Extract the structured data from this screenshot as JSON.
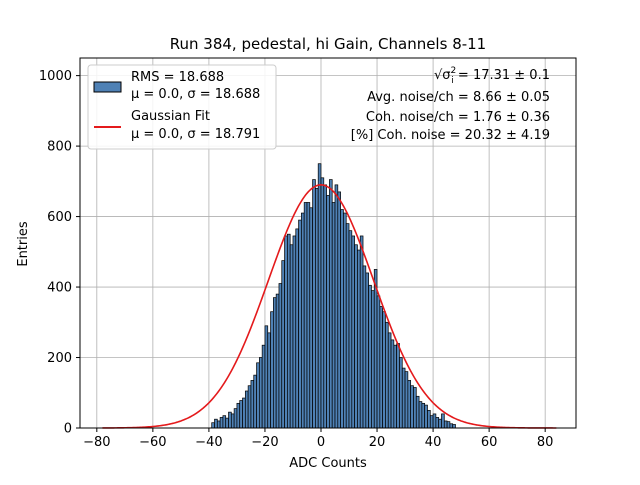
{
  "chart_data": {
    "type": "bar",
    "title": "Run 384, pedestal, hi Gain, Channels 8-11",
    "xlabel": "ADC Counts",
    "ylabel": "Entries",
    "xlim": [
      -86,
      91
    ],
    "ylim": [
      0,
      1050
    ],
    "xticks": [
      -80,
      -60,
      -40,
      -20,
      0,
      20,
      40,
      60,
      80
    ],
    "yticks": [
      0,
      200,
      400,
      600,
      800,
      1000
    ],
    "grid": true,
    "bin_width": 1,
    "histogram": {
      "name": "RMS",
      "legend_line1": "RMS = 18.688",
      "legend_line2": "μ = 0.0, σ = 18.688",
      "color": "#4f81b5",
      "edge_color": "#000000",
      "bins": [
        [
          -39,
          15
        ],
        [
          -38,
          25
        ],
        [
          -37,
          20
        ],
        [
          -36,
          30
        ],
        [
          -35,
          35
        ],
        [
          -34,
          28
        ],
        [
          -33,
          45
        ],
        [
          -32,
          40
        ],
        [
          -31,
          55
        ],
        [
          -30,
          70
        ],
        [
          -29,
          78
        ],
        [
          -28,
          85
        ],
        [
          -27,
          105
        ],
        [
          -26,
          120
        ],
        [
          -25,
          135
        ],
        [
          -24,
          150
        ],
        [
          -23,
          185
        ],
        [
          -22,
          200
        ],
        [
          -21,
          235
        ],
        [
          -20,
          290
        ],
        [
          -19,
          270
        ],
        [
          -18,
          330
        ],
        [
          -17,
          370
        ],
        [
          -16,
          380
        ],
        [
          -15,
          410
        ],
        [
          -14,
          475
        ],
        [
          -13,
          545
        ],
        [
          -12,
          550
        ],
        [
          -11,
          520
        ],
        [
          -10,
          545
        ],
        [
          -9,
          565
        ],
        [
          -8,
          590
        ],
        [
          -7,
          610
        ],
        [
          -6,
          640
        ],
        [
          -5,
          640
        ],
        [
          -4,
          625
        ],
        [
          -3,
          705
        ],
        [
          -2,
          680
        ],
        [
          -1,
          750
        ],
        [
          0,
          710
        ],
        [
          1,
          690
        ],
        [
          2,
          660
        ],
        [
          3,
          705
        ],
        [
          4,
          640
        ],
        [
          5,
          690
        ],
        [
          6,
          670
        ],
        [
          7,
          620
        ],
        [
          8,
          610
        ],
        [
          9,
          580
        ],
        [
          10,
          560
        ],
        [
          11,
          545
        ],
        [
          12,
          520
        ],
        [
          13,
          505
        ],
        [
          14,
          545
        ],
        [
          15,
          460
        ],
        [
          16,
          440
        ],
        [
          17,
          405
        ],
        [
          18,
          390
        ],
        [
          19,
          450
        ],
        [
          20,
          375
        ],
        [
          21,
          345
        ],
        [
          22,
          330
        ],
        [
          23,
          300
        ],
        [
          24,
          270
        ],
        [
          25,
          250
        ],
        [
          26,
          235
        ],
        [
          27,
          240
        ],
        [
          28,
          200
        ],
        [
          29,
          170
        ],
        [
          30,
          160
        ],
        [
          31,
          135
        ],
        [
          32,
          120
        ],
        [
          33,
          115
        ],
        [
          34,
          90
        ],
        [
          35,
          75
        ],
        [
          36,
          70
        ],
        [
          37,
          65
        ],
        [
          38,
          50
        ],
        [
          39,
          35
        ],
        [
          40,
          40
        ],
        [
          41,
          30
        ],
        [
          42,
          25
        ],
        [
          43,
          40
        ],
        [
          44,
          20
        ],
        [
          45,
          18
        ],
        [
          46,
          12
        ],
        [
          47,
          10
        ]
      ]
    },
    "fit": {
      "name": "Gaussian Fit",
      "legend_line1": "Gaussian Fit",
      "legend_line2": "μ = 0.0, σ = 18.791",
      "mu": 0.0,
      "sigma": 18.791,
      "amplitude": 690,
      "x_range": [
        -78,
        84
      ],
      "color": "#e41a1c"
    },
    "annotations": {
      "line1_prefix": "√σ",
      "line1_value": " = 17.31 ± 0.1",
      "line2": "Avg. noise/ch = 8.66 ± 0.05",
      "line3": "Coh. noise/ch = 1.76 ± 0.36",
      "line4": "[%] Coh. noise = 20.32 ± 4.19"
    },
    "legend_position": "top-left"
  }
}
